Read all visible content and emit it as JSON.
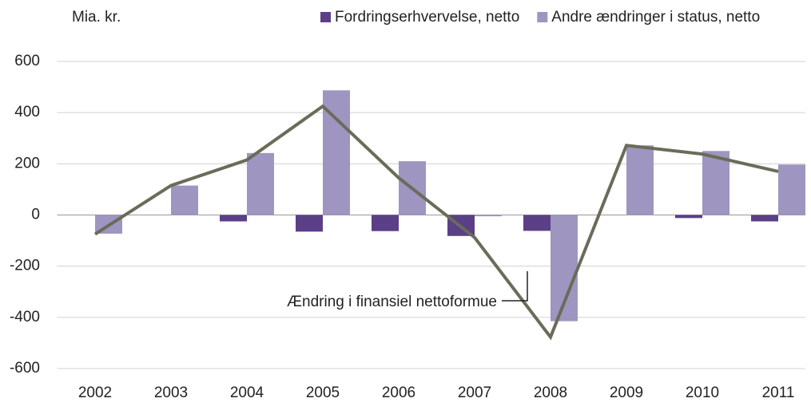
{
  "chart_data": {
    "type": "bar_line",
    "unit_label": "Mia. kr.",
    "categories": [
      "2002",
      "2003",
      "2004",
      "2005",
      "2006",
      "2007",
      "2008",
      "2009",
      "2010",
      "2011"
    ],
    "series": [
      {
        "name": "Fordringserhvervelse, netto",
        "color": "#5b3f87",
        "kind": "bar",
        "values": [
          0,
          0,
          -25,
          -65,
          -63,
          -82,
          -62,
          0,
          -12,
          -25
        ]
      },
      {
        "name": "Andre ændringer i status, netto",
        "color": "#9e95c0",
        "kind": "bar",
        "values": [
          -73,
          115,
          242,
          487,
          210,
          -5,
          -415,
          272,
          250,
          197
        ]
      },
      {
        "name": "Ændring i finansiel nettoformue",
        "color": "#6b6b5a",
        "kind": "line",
        "values": [
          -75,
          115,
          215,
          425,
          145,
          -88,
          -477,
          272,
          238,
          170
        ]
      }
    ],
    "ylim": [
      -600,
      600
    ],
    "yticks": [
      -600,
      -400,
      -200,
      0,
      200,
      400,
      600
    ],
    "grid": true
  }
}
